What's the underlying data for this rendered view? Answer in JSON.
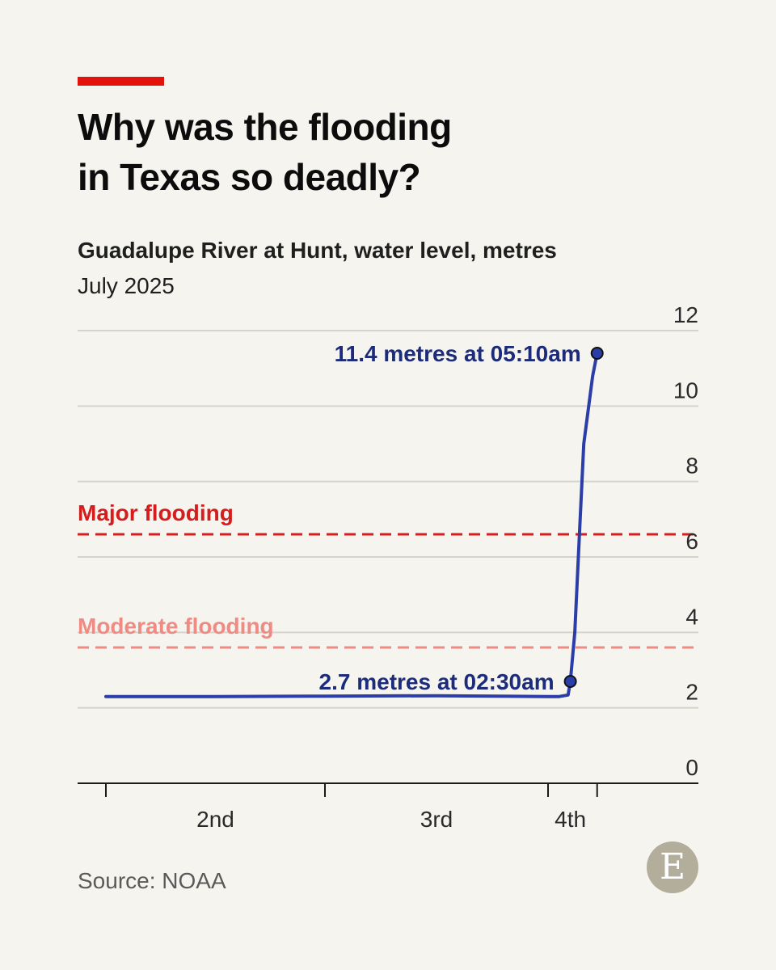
{
  "header": {
    "title_line1": "Why was the flooding",
    "title_line2": "in Texas so deadly?",
    "subtitle": "Guadalupe River at Hunt, water level, metres",
    "subtitle2": "July 2025"
  },
  "footer": {
    "source": "Source: NOAA",
    "logo_letter": "E"
  },
  "colors": {
    "background": "#f5f4ef",
    "accent_red": "#e3120b",
    "series": "#2b3ea8",
    "annotation": "#1d2c7a",
    "major": "#d51d1d",
    "moderate": "#f08b84"
  },
  "chart_data": {
    "type": "line",
    "title": "Why was the flooding in Texas so deadly?",
    "subtitle": "Guadalupe River at Hunt, water level, metres",
    "ylim": [
      0,
      12
    ],
    "yticks": [
      0,
      2,
      4,
      6,
      8,
      10,
      12
    ],
    "xticks": [
      {
        "label": "2nd",
        "x": 1.5
      },
      {
        "label": "3rd",
        "x": 2.5
      },
      {
        "label": "4th",
        "x": 3.1
      }
    ],
    "x_boundaries": [
      1.0,
      2.0,
      3.0,
      3.22
    ],
    "grid": true,
    "series": [
      {
        "x": [
          1.0,
          1.5,
          2.0,
          2.5,
          3.0,
          3.05,
          3.09,
          3.1,
          3.12,
          3.14,
          3.16,
          3.2,
          3.22
        ],
        "y": [
          2.3,
          2.3,
          2.31,
          2.32,
          2.3,
          2.3,
          2.34,
          2.7,
          4.0,
          6.5,
          9.0,
          10.8,
          11.4
        ]
      }
    ],
    "reference_lines": [
      {
        "label": "Major flooding",
        "y": 6.6,
        "style": "dashed"
      },
      {
        "label": "Moderate flooding",
        "y": 3.6,
        "style": "dashed"
      }
    ],
    "annotations": [
      {
        "text": "11.4 metres at 05:10am",
        "x": 3.22,
        "y": 11.4
      },
      {
        "text": "2.7 metres at 02:30am",
        "x": 3.1,
        "y": 2.7
      }
    ]
  }
}
